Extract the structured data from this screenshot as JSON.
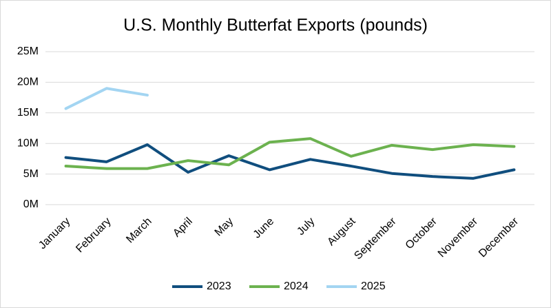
{
  "chart_data": {
    "type": "line",
    "title": "U.S. Monthly Butterfat Exports (pounds)",
    "categories": [
      "January",
      "February",
      "March",
      "April",
      "May",
      "June",
      "July",
      "August",
      "September",
      "October",
      "November",
      "December"
    ],
    "series": [
      {
        "name": "2023",
        "color": "#104e7e",
        "values": [
          7700000,
          7000000,
          9800000,
          5300000,
          8000000,
          5700000,
          7400000,
          6300000,
          5100000,
          4600000,
          4300000,
          5700000
        ]
      },
      {
        "name": "2024",
        "color": "#6cb24f",
        "values": [
          6300000,
          5900000,
          5900000,
          7200000,
          6500000,
          10200000,
          10800000,
          7900000,
          9700000,
          9000000,
          9800000,
          9500000
        ]
      },
      {
        "name": "2025",
        "color": "#a3d5f2",
        "values": [
          15700000,
          19000000,
          17900000,
          null,
          null,
          null,
          null,
          null,
          null,
          null,
          null,
          null
        ]
      }
    ],
    "ylim": [
      0,
      25000000
    ],
    "yticks": [
      {
        "value": 0,
        "label": "0M"
      },
      {
        "value": 5000000,
        "label": "5M"
      },
      {
        "value": 10000000,
        "label": "10M"
      },
      {
        "value": 15000000,
        "label": "15M"
      },
      {
        "value": 20000000,
        "label": "20M"
      },
      {
        "value": 25000000,
        "label": "25M"
      }
    ],
    "grid": true,
    "legend": "bottom"
  }
}
